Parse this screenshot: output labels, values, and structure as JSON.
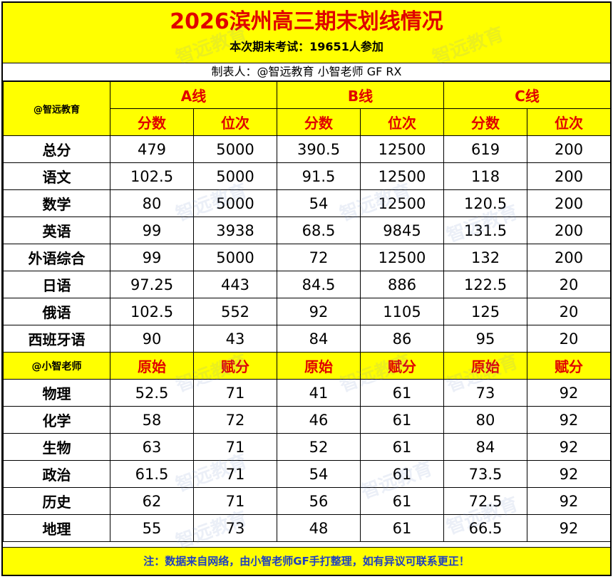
{
  "title": "2026滨州高三期末划线情况",
  "subtitle": "本次期末考试：19651人参加",
  "maker": "制表人：@智远教育 小智老师 GF RX",
  "corner_top": "@智远教育",
  "corner_mid": "@小智老师",
  "groups": [
    "A线",
    "B线",
    "C线"
  ],
  "top_sub": [
    "分数",
    "位次"
  ],
  "mid_sub": [
    "原始",
    "赋分"
  ],
  "top_rows": [
    {
      "label": "总分",
      "vals": [
        "479",
        "5000",
        "390.5",
        "12500",
        "619",
        "200"
      ]
    },
    {
      "label": "语文",
      "vals": [
        "102.5",
        "5000",
        "91.5",
        "12500",
        "118",
        "200"
      ]
    },
    {
      "label": "数学",
      "vals": [
        "80",
        "5000",
        "54",
        "12500",
        "120.5",
        "200"
      ]
    },
    {
      "label": "英语",
      "vals": [
        "99",
        "3938",
        "68.5",
        "9845",
        "131.5",
        "200"
      ]
    },
    {
      "label": "外语综合",
      "vals": [
        "99",
        "5000",
        "72",
        "12500",
        "132",
        "200"
      ]
    },
    {
      "label": "日语",
      "vals": [
        "97.25",
        "443",
        "84.5",
        "886",
        "122.5",
        "20"
      ]
    },
    {
      "label": "俄语",
      "vals": [
        "102.5",
        "552",
        "92",
        "1105",
        "125",
        "20"
      ]
    },
    {
      "label": "西班牙语",
      "vals": [
        "90",
        "43",
        "84",
        "86",
        "95",
        "20"
      ]
    }
  ],
  "bottom_rows": [
    {
      "label": "物理",
      "vals": [
        "52.5",
        "71",
        "41",
        "61",
        "73",
        "92"
      ]
    },
    {
      "label": "化学",
      "vals": [
        "58",
        "72",
        "46",
        "61",
        "80",
        "92"
      ]
    },
    {
      "label": "生物",
      "vals": [
        "63",
        "71",
        "52",
        "61",
        "84",
        "92"
      ]
    },
    {
      "label": "政治",
      "vals": [
        "61.5",
        "71",
        "54",
        "61",
        "73.5",
        "92"
      ]
    },
    {
      "label": "历史",
      "vals": [
        "62",
        "71",
        "56",
        "61",
        "72.5",
        "92"
      ]
    },
    {
      "label": "地理",
      "vals": [
        "55",
        "73",
        "48",
        "61",
        "66.5",
        "92"
      ]
    }
  ],
  "footer": "注：数据来自网络，由小智老师GF手打整理，如有异议可联系更正！",
  "watermark": "智远教育",
  "colors": {
    "yellow": "#ffff00",
    "red": "#e00000",
    "footer_blue": "#2040c0"
  }
}
